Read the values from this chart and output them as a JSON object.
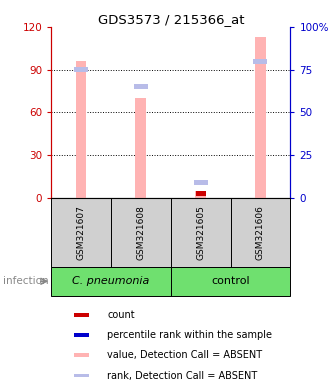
{
  "title": "GDS3573 / 215366_at",
  "samples": [
    "GSM321607",
    "GSM321608",
    "GSM321605",
    "GSM321606"
  ],
  "value_absent": [
    96.0,
    70.0,
    5.0,
    113.0
  ],
  "rank_absent": [
    75.0,
    65.0,
    9.0,
    80.0
  ],
  "count_value": [
    null,
    null,
    3.0,
    null
  ],
  "rank_scale": 1.2,
  "ylim_left": [
    0,
    120
  ],
  "ylim_right": [
    0,
    100
  ],
  "yticks_left": [
    0,
    30,
    60,
    90,
    120
  ],
  "ytick_labels_left": [
    "0",
    "30",
    "60",
    "90",
    "120"
  ],
  "yticks_right": [
    0,
    25,
    50,
    75,
    100
  ],
  "ytick_labels_right": [
    "0",
    "25",
    "50",
    "75",
    "100%"
  ],
  "left_axis_color": "#cc0000",
  "right_axis_color": "#0000cc",
  "bar_color_absent": "#ffb3b3",
  "rank_color_absent": "#b8bce8",
  "count_color": "#cc0000",
  "rank_color_present": "#0000cc",
  "group1_label": "C. pneumonia",
  "group2_label": "control",
  "group_bg": "#6fe06f",
  "sample_bg": "#d0d0d0",
  "bar_width": 0.18,
  "legend_colors": [
    "#cc0000",
    "#0000cc",
    "#ffb3b3",
    "#b8bce8"
  ],
  "legend_labels": [
    "count",
    "percentile rank within the sample",
    "value, Detection Call = ABSENT",
    "rank, Detection Call = ABSENT"
  ]
}
